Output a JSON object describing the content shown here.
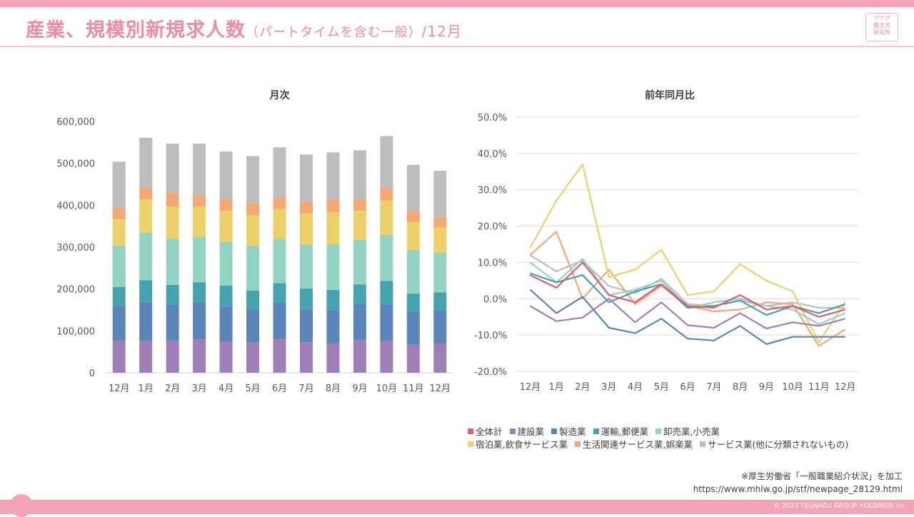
{
  "header": {
    "title": "産業、規模別新規求人数",
    "subtitle": "（パートタイムを含む一般）",
    "month": "/12月",
    "logo_lines": [
      "ツナグ",
      "働き方",
      "研究所"
    ]
  },
  "colors": {
    "brand": "#ee8ba0",
    "bar_band": "#f4a3b4"
  },
  "source": {
    "note": "※厚生労働省「一般職業紹介状況」を加工",
    "url": "https://www.mhlw.go.jp/stf/newpage_28129.html"
  },
  "copyright": "© 2023 TSUNAGU GROUP HOLDINGS Inc.",
  "legend": [
    {
      "name": "全体計",
      "color": "#e25c73"
    },
    {
      "name": "建設業",
      "color": "#a07fb8"
    },
    {
      "name": "製造業",
      "color": "#5b84b8"
    },
    {
      "name": "運輸,郵便業",
      "color": "#45a3b0"
    },
    {
      "name": "卸売業,小売業",
      "color": "#93d3c4"
    },
    {
      "name": "宿泊業,飲食サービス業",
      "color": "#ecd06a"
    },
    {
      "name": "生活関連サービス業,娯楽業",
      "color": "#f4a873"
    },
    {
      "name": "サービス業(他に分類されないもの)",
      "color": "#bdbdbd"
    }
  ],
  "chart_data": [
    {
      "type": "bar",
      "stacked": true,
      "title": "月次",
      "categories": [
        "12月",
        "1月",
        "2月",
        "3月",
        "4月",
        "5月",
        "6月",
        "7月",
        "8月",
        "9月",
        "10月",
        "11月",
        "12月"
      ],
      "ylim": [
        0,
        600000
      ],
      "yticks": [
        0,
        100000,
        200000,
        300000,
        400000,
        500000,
        600000
      ],
      "ytick_labels": [
        "0",
        "100,000",
        "200,000",
        "300,000",
        "400,000",
        "500,000",
        "600,000"
      ],
      "series": [
        {
          "name": "建設業",
          "color": "#a07fb8",
          "values": [
            76000,
            76000,
            76000,
            80000,
            75000,
            72000,
            80000,
            73000,
            70000,
            78000,
            76000,
            67000,
            70000
          ]
        },
        {
          "name": "製造業",
          "color": "#5b84b8",
          "values": [
            84000,
            93000,
            86000,
            88000,
            83000,
            78000,
            87000,
            80000,
            79000,
            86000,
            87000,
            78000,
            79000
          ]
        },
        {
          "name": "運輸,郵便業",
          "color": "#45a3b0",
          "values": [
            45000,
            52000,
            48000,
            48000,
            50000,
            46000,
            47000,
            48000,
            49000,
            47000,
            56000,
            44000,
            43000
          ]
        },
        {
          "name": "卸売業,小売業",
          "color": "#93d3c4",
          "values": [
            98000,
            113000,
            110000,
            108000,
            105000,
            107000,
            106000,
            105000,
            108000,
            106000,
            110000,
            104000,
            95000
          ]
        },
        {
          "name": "宿泊業,飲食サービス業",
          "color": "#ecd06a",
          "values": [
            63000,
            80000,
            76000,
            72000,
            74000,
            73000,
            71000,
            75000,
            77000,
            70000,
            82000,
            66000,
            60000
          ]
        },
        {
          "name": "生活関連サービス業,娯楽業",
          "color": "#f4a873",
          "values": [
            28000,
            28000,
            34000,
            28000,
            28000,
            30000,
            28000,
            27000,
            31000,
            28000,
            30000,
            27000,
            25000
          ]
        },
        {
          "name": "サービス業(他に分類されないもの)",
          "color": "#bdbdbd",
          "values": [
            110000,
            119000,
            117000,
            123000,
            113000,
            111000,
            119000,
            113000,
            112000,
            116000,
            124000,
            110000,
            110000
          ]
        }
      ]
    },
    {
      "type": "line",
      "title": "前年同月比",
      "categories": [
        "12月",
        "1月",
        "2月",
        "3月",
        "4月",
        "5月",
        "6月",
        "7月",
        "8月",
        "9月",
        "10月",
        "11月",
        "12月"
      ],
      "ylim": [
        -20,
        50
      ],
      "yticks": [
        -20,
        -10,
        0,
        10,
        20,
        30,
        40,
        50
      ],
      "ytick_labels": [
        "-20.0%",
        "-10.0%",
        "0.0%",
        "10.0%",
        "20.0%",
        "30.0%",
        "40.0%",
        "50.0%"
      ],
      "series": [
        {
          "name": "全体計",
          "color": "#e25c73",
          "values": [
            6.5,
            3.0,
            10.0,
            1.0,
            -1.0,
            4.0,
            -2.0,
            -2.5,
            1.0,
            -3.0,
            -2.0,
            -5.0,
            -3.0
          ]
        },
        {
          "name": "建設業",
          "color": "#a07fb8",
          "values": [
            -2.0,
            -6.2,
            -5.2,
            0.0,
            -6.5,
            -1.0,
            -7.3,
            -8.0,
            -4.0,
            -8.2,
            -6.5,
            -7.5,
            -5.5
          ]
        },
        {
          "name": "製造業",
          "color": "#5b84b8",
          "values": [
            2.5,
            -4.0,
            0.5,
            -8.0,
            -9.5,
            -5.5,
            -11.0,
            -11.5,
            -7.5,
            -12.5,
            -10.5,
            -10.5,
            -10.5
          ]
        },
        {
          "name": "運輸,郵便業",
          "color": "#45a3b0",
          "values": [
            7.0,
            4.5,
            6.5,
            -1.0,
            2.0,
            4.0,
            -2.5,
            -2.0,
            -0.5,
            -4.5,
            -2.0,
            -4.0,
            -1.5
          ]
        },
        {
          "name": "卸売業,小売業",
          "color": "#93d3c4",
          "values": [
            10.0,
            4.5,
            11.0,
            1.0,
            2.5,
            5.0,
            -2.5,
            -1.0,
            0.0,
            -2.0,
            -3.0,
            -7.0,
            -4.0
          ]
        },
        {
          "name": "宿泊業,飲食サービス業",
          "color": "#ecd06a",
          "values": [
            14.0,
            27.0,
            37.0,
            6.0,
            8.0,
            13.5,
            1.0,
            2.0,
            9.5,
            5.0,
            2.0,
            -12.0,
            -1.0
          ]
        },
        {
          "name": "生活関連サービス業,娯楽業",
          "color": "#f4a873",
          "values": [
            12.0,
            18.5,
            0.0,
            8.0,
            -1.5,
            3.5,
            -2.0,
            -3.5,
            -3.0,
            -1.0,
            -1.5,
            -13.0,
            -8.5
          ]
        },
        {
          "name": "サービス業(他に分類されないもの)",
          "color": "#bdbdbd",
          "values": [
            12.0,
            7.5,
            10.5,
            3.5,
            1.5,
            5.5,
            -1.5,
            -2.0,
            -0.5,
            -2.0,
            -1.0,
            -2.5,
            -2.5
          ]
        }
      ]
    }
  ]
}
